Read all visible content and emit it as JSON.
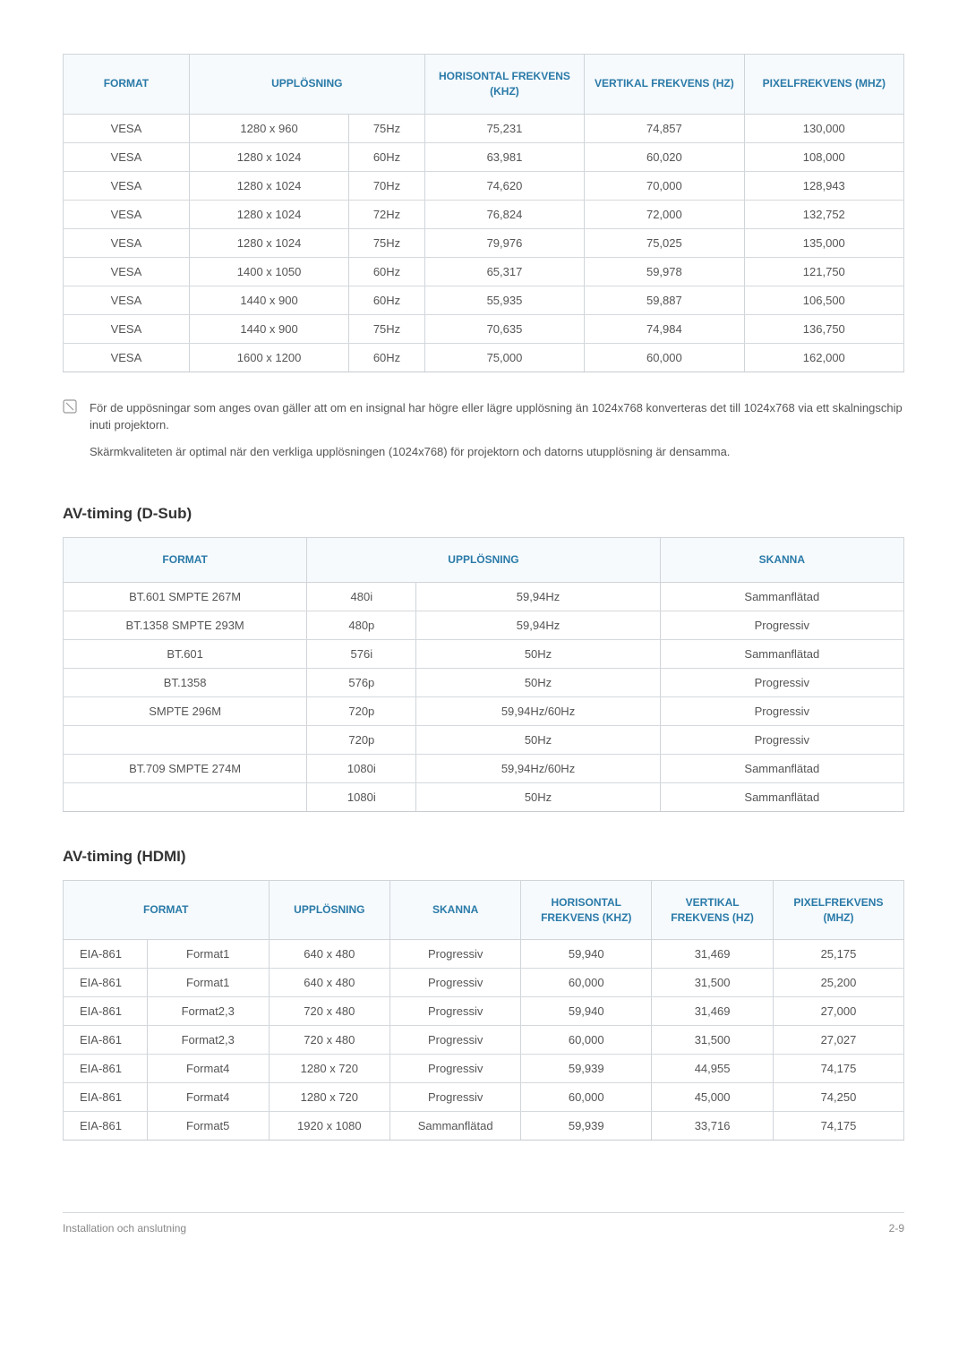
{
  "colors": {
    "header_bg": "#f6fafd",
    "header_text": "#2a7aa8",
    "border": "#d0d5da",
    "row_border": "#d5d9dd",
    "body_text": "#555555",
    "heading_text": "#333333",
    "footer_text": "#888888"
  },
  "typography": {
    "body_fontsize": 13,
    "header_fontsize": 12,
    "heading_fontsize": 17,
    "footer_fontsize": 12,
    "font_family": "Arial"
  },
  "table1": {
    "headers": [
      "FORMAT",
      "UPPLÖSNING",
      "HORISONTAL FREKVENS (KHZ)",
      "VERTIKAL FREKVENS (HZ)",
      "PIXELFREKVENS (MHZ)"
    ],
    "col_widths": [
      "15%",
      "19%",
      "9%",
      "19%",
      "19%",
      "19%"
    ],
    "rows": [
      [
        "VESA",
        "1280 x 960",
        "75Hz",
        "75,231",
        "74,857",
        "130,000"
      ],
      [
        "VESA",
        "1280 x 1024",
        "60Hz",
        "63,981",
        "60,020",
        "108,000"
      ],
      [
        "VESA",
        "1280 x 1024",
        "70Hz",
        "74,620",
        "70,000",
        "128,943"
      ],
      [
        "VESA",
        "1280 x 1024",
        "72Hz",
        "76,824",
        "72,000",
        "132,752"
      ],
      [
        "VESA",
        "1280 x 1024",
        "75Hz",
        "79,976",
        "75,025",
        "135,000"
      ],
      [
        "VESA",
        "1400 x 1050",
        "60Hz",
        "65,317",
        "59,978",
        "121,750"
      ],
      [
        "VESA",
        "1440 x 900",
        "60Hz",
        "55,935",
        "59,887",
        "106,500"
      ],
      [
        "VESA",
        "1440 x 900",
        "75Hz",
        "70,635",
        "74,984",
        "136,750"
      ],
      [
        "VESA",
        "1600 x 1200",
        "60Hz",
        "75,000",
        "60,000",
        "162,000"
      ]
    ]
  },
  "note": {
    "para1": "För de uppösningar som anges ovan gäller att om en insignal har högre eller lägre upplösning än 1024x768 konverteras det till 1024x768 via ett skalningschip inuti projektorn.",
    "para2": "Skärmkvaliteten är optimal när den verkliga upplösningen (1024x768) för projektorn och datorns utupplösning är densamma."
  },
  "section2": {
    "title": "AV-timing (D-Sub)",
    "headers": [
      "FORMAT",
      "UPPLÖSNING",
      "SKANNA"
    ],
    "col_widths": [
      "29%",
      "13%",
      "29%",
      "29%"
    ],
    "rows": [
      [
        "BT.601 SMPTE 267M",
        "480i",
        "59,94Hz",
        "Sammanflätad"
      ],
      [
        "BT.1358 SMPTE 293M",
        "480p",
        "59,94Hz",
        "Progressiv"
      ],
      [
        "BT.601",
        "576i",
        "50Hz",
        "Sammanflätad"
      ],
      [
        "BT.1358",
        "576p",
        "50Hz",
        "Progressiv"
      ],
      [
        "SMPTE 296M",
        "720p",
        "59,94Hz/60Hz",
        "Progressiv"
      ],
      [
        "",
        "720p",
        "50Hz",
        "Progressiv"
      ],
      [
        "BT.709 SMPTE 274M",
        "1080i",
        "59,94Hz/60Hz",
        "Sammanflätad"
      ],
      [
        "",
        "1080i",
        "50Hz",
        "Sammanflätad"
      ]
    ]
  },
  "section3": {
    "title": "AV-timing (HDMI)",
    "headers": [
      "FORMAT",
      "UPPLÖSNING",
      "SKANNA",
      "HORISONTAL FREKVENS (KHZ)",
      "VERTIKAL FREKVENS (HZ)",
      "PIXELFREKVENS (MHZ)"
    ],
    "col_widths": [
      "9%",
      "13%",
      "13%",
      "14%",
      "14%",
      "13%",
      "14%"
    ],
    "rows": [
      [
        "EIA-861",
        "Format1",
        "640 x 480",
        "Progressiv",
        "59,940",
        "31,469",
        "25,175"
      ],
      [
        "EIA-861",
        "Format1",
        "640 x 480",
        "Progressiv",
        "60,000",
        "31,500",
        "25,200"
      ],
      [
        "EIA-861",
        "Format2,3",
        "720 x 480",
        "Progressiv",
        "59,940",
        "31,469",
        "27,000"
      ],
      [
        "EIA-861",
        "Format2,3",
        "720 x 480",
        "Progressiv",
        "60,000",
        "31,500",
        "27,027"
      ],
      [
        "EIA-861",
        "Format4",
        "1280 x 720",
        "Progressiv",
        "59,939",
        "44,955",
        "74,175"
      ],
      [
        "EIA-861",
        "Format4",
        "1280 x 720",
        "Progressiv",
        "60,000",
        "45,000",
        "74,250"
      ],
      [
        "EIA-861",
        "Format5",
        "1920 x 1080",
        "Sammanflätad",
        "59,939",
        "33,716",
        "74,175"
      ]
    ]
  },
  "footer": {
    "left": "Installation och anslutning",
    "right": "2-9"
  }
}
